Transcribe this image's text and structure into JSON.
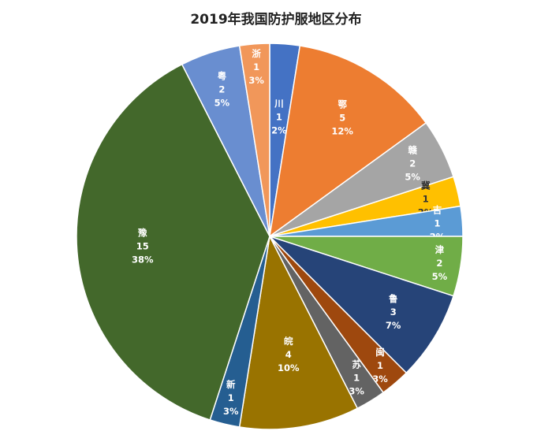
{
  "chart_data": {
    "type": "pie",
    "title": "2019年我国防护服地区分布",
    "start_angle_deg": 0,
    "direction": "clockwise",
    "slices": [
      {
        "label": "川",
        "value": 1,
        "percent": "2%",
        "color": "#4472C4"
      },
      {
        "label": "鄂",
        "value": 5,
        "percent": "12%",
        "color": "#ED7D31"
      },
      {
        "label": "赣",
        "value": 2,
        "percent": "5%",
        "color": "#A5A5A5"
      },
      {
        "label": "冀",
        "value": 1,
        "percent": "2%",
        "color": "#FFC000"
      },
      {
        "label": "吉",
        "value": 1,
        "percent": "2%",
        "color": "#5B9BD5"
      },
      {
        "label": "津",
        "value": 2,
        "percent": "5%",
        "color": "#70AD47"
      },
      {
        "label": "鲁",
        "value": 3,
        "percent": "7%",
        "color": "#264478"
      },
      {
        "label": "闽",
        "value": 1,
        "percent": "3%",
        "color": "#9E480E"
      },
      {
        "label": "苏",
        "value": 1,
        "percent": "3%",
        "color": "#636363"
      },
      {
        "label": "皖",
        "value": 4,
        "percent": "10%",
        "color": "#997300"
      },
      {
        "label": "新",
        "value": 1,
        "percent": "3%",
        "color": "#255E91"
      },
      {
        "label": "豫",
        "value": 15,
        "percent": "38%",
        "color": "#43682B"
      },
      {
        "label": "粤",
        "value": 2,
        "percent": "5%",
        "color": "#698ED0"
      },
      {
        "label": "浙",
        "value": 1,
        "percent": "3%",
        "color": "#F1975A"
      }
    ]
  }
}
